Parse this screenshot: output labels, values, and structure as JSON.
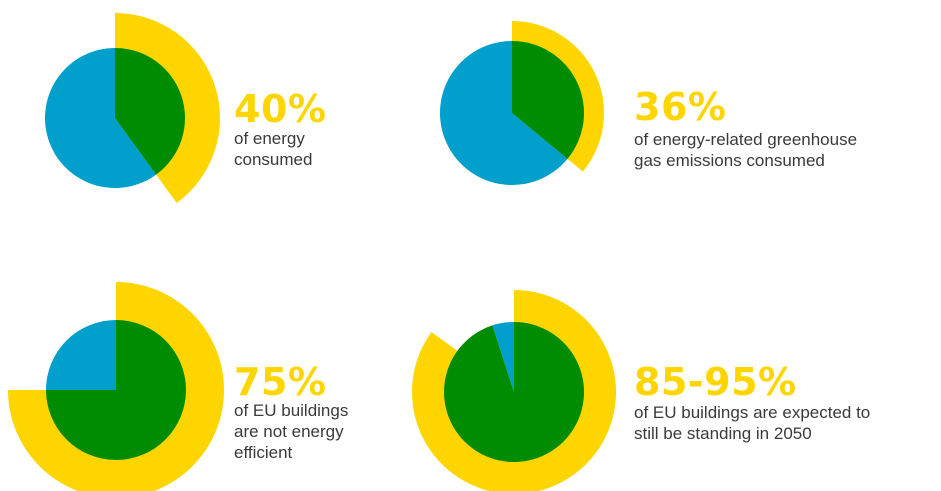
{
  "colors": {
    "yellow": "#FFD500",
    "green": "#008C00",
    "blue": "#009FCC",
    "text": "#3a3a3a"
  },
  "chart_data": [
    {
      "type": "pie",
      "value": "40%",
      "description_lines": [
        "of energy",
        "consumed"
      ],
      "green_percent": 40,
      "yellow_percent": 40,
      "blue_percent": 60
    },
    {
      "type": "pie",
      "value": "36%",
      "description_lines": [
        "of energy-related greenhouse",
        "gas emissions consumed"
      ],
      "green_percent": 36,
      "yellow_percent": 36,
      "blue_percent": 64
    },
    {
      "type": "pie",
      "value": "75%",
      "description_lines": [
        "of EU buildings",
        "are not energy",
        "efficient"
      ],
      "green_percent": 75,
      "yellow_percent": 75,
      "blue_percent": 25
    },
    {
      "type": "pie",
      "value": "85-95%",
      "description_lines": [
        "of EU buildings are expected to",
        "still be standing in 2050"
      ],
      "green_percent": 95,
      "yellow_percent": 85,
      "blue_percent": 5
    }
  ]
}
